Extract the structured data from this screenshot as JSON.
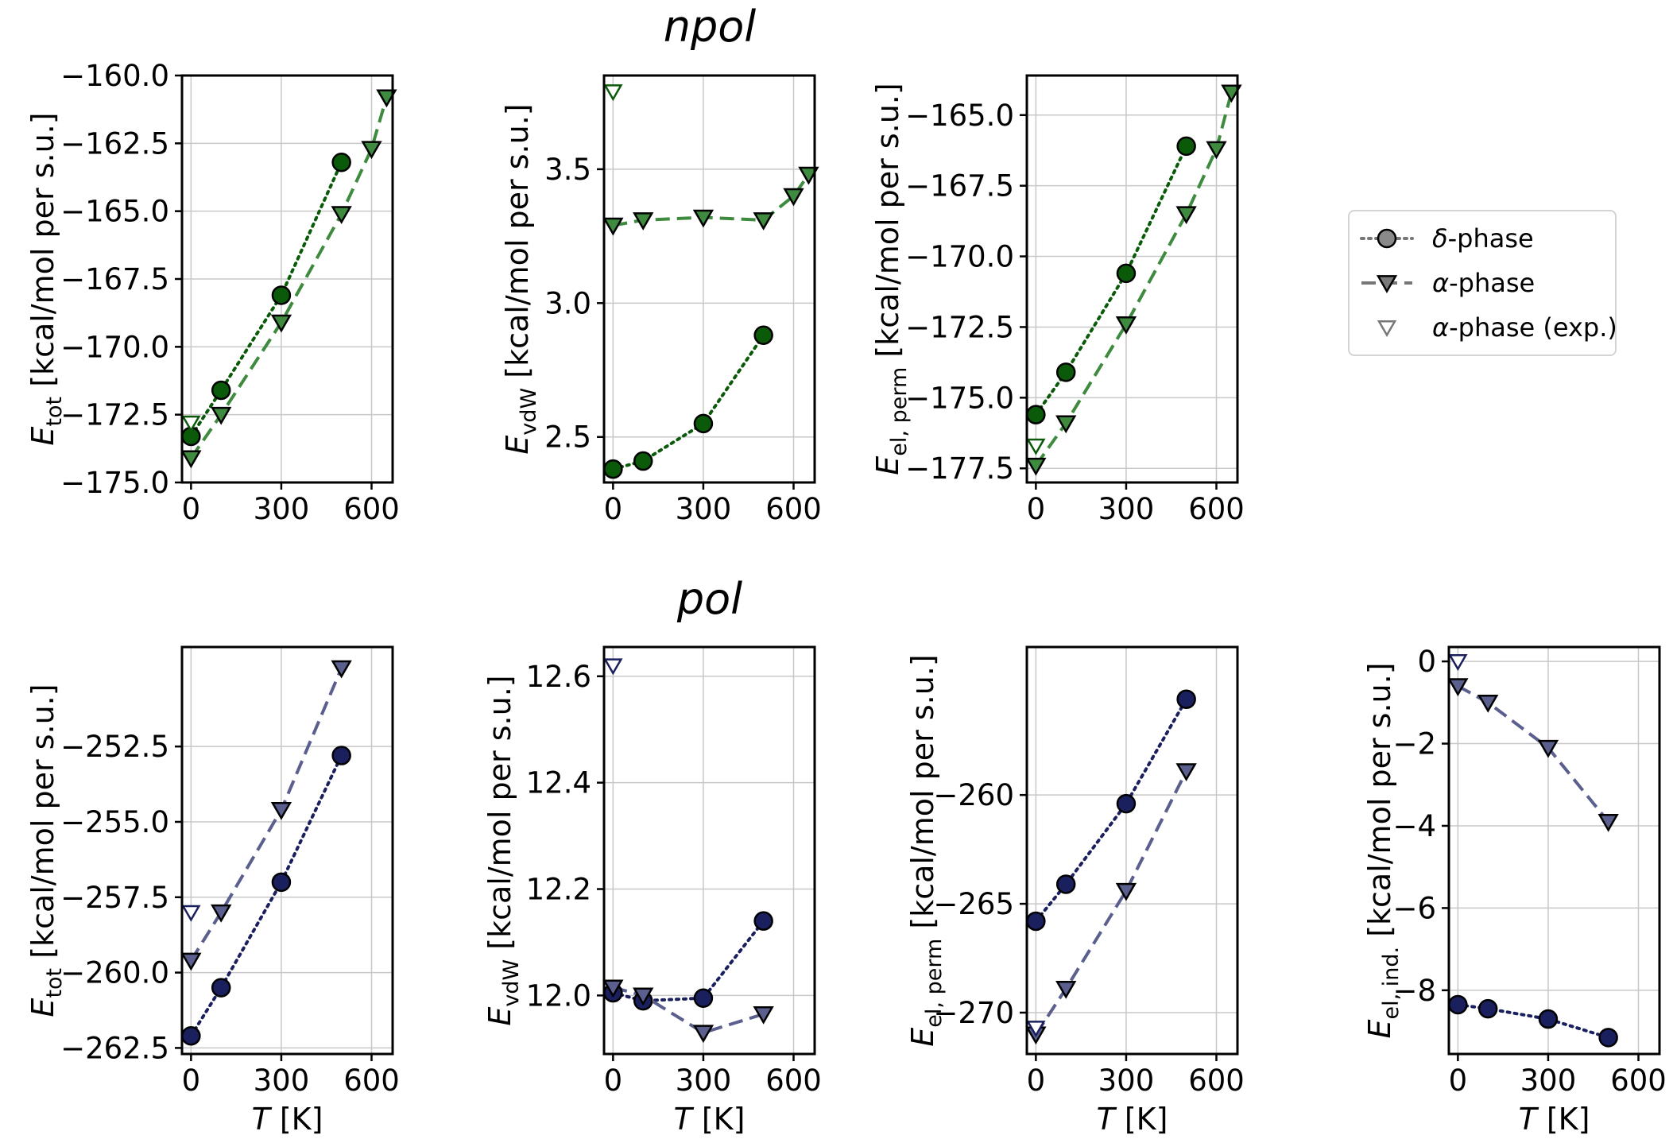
{
  "colors": {
    "npol_marker": "#0a5a0a",
    "npol_alpha": "#3e8a3e",
    "pol_marker": "#1a1f5e",
    "pol_alpha": "#5a5f8e",
    "grid": "#c8c8c8"
  },
  "titles": {
    "npol": "npol",
    "pol": "pol"
  },
  "legend": {
    "placement": "right-middle",
    "entries": [
      {
        "key": "delta",
        "greek": "δ",
        "suffix": "-phase"
      },
      {
        "key": "alpha",
        "greek": "α",
        "suffix": "-phase"
      },
      {
        "key": "exp",
        "greek": "α",
        "suffix": "-phase (exp.)"
      }
    ]
  },
  "xlabel": {
    "italic": "T",
    "unit": " [K]"
  },
  "chart_data": [
    {
      "type": "line",
      "row": "npol",
      "ylabel": {
        "sym": "E",
        "sub": "tot",
        "rest": " [kcal/mol per s.u.]"
      },
      "xlim": [
        -30,
        670
      ],
      "ylim": [
        -175.0,
        -160.0
      ],
      "xticks": [
        "0",
        "300",
        "600"
      ],
      "xtick_vals": [
        0,
        300,
        600
      ],
      "yticks": [
        "−175.0",
        "−172.5",
        "−170.0",
        "−167.5",
        "−165.0",
        "−162.5",
        "−160.0"
      ],
      "ytick_vals": [
        -175.0,
        -172.5,
        -170.0,
        -167.5,
        -165.0,
        -162.5,
        -160.0
      ],
      "show_xlabel": false,
      "series": [
        {
          "name": "δ-phase",
          "style": "delta",
          "x": [
            0,
            100,
            300,
            500
          ],
          "y": [
            -173.3,
            -171.6,
            -168.1,
            -163.2
          ]
        },
        {
          "name": "α-phase",
          "style": "alpha",
          "x": [
            0,
            100,
            300,
            500,
            600,
            650
          ],
          "y": [
            -174.1,
            -172.5,
            -169.1,
            -165.1,
            -162.7,
            -160.8
          ]
        },
        {
          "name": "α-phase (exp.)",
          "style": "exp",
          "x": [
            0
          ],
          "y": [
            -172.8
          ]
        }
      ]
    },
    {
      "type": "line",
      "row": "npol",
      "ylabel": {
        "sym": "E",
        "sub": "vdW",
        "rest": " [kcal/mol per s.u.]"
      },
      "xlim": [
        -30,
        670
      ],
      "ylim": [
        2.33,
        3.85
      ],
      "xticks": [
        "0",
        "300",
        "600"
      ],
      "xtick_vals": [
        0,
        300,
        600
      ],
      "yticks": [
        "2.5",
        "3.0",
        "3.5"
      ],
      "ytick_vals": [
        2.5,
        3.0,
        3.5
      ],
      "show_xlabel": false,
      "series": [
        {
          "name": "δ-phase",
          "style": "delta",
          "x": [
            0,
            100,
            300,
            500
          ],
          "y": [
            2.38,
            2.41,
            2.55,
            2.88
          ]
        },
        {
          "name": "α-phase",
          "style": "alpha",
          "x": [
            0,
            100,
            300,
            500,
            600,
            650
          ],
          "y": [
            3.29,
            3.31,
            3.32,
            3.31,
            3.4,
            3.48
          ]
        },
        {
          "name": "α-phase (exp.)",
          "style": "exp",
          "x": [
            0
          ],
          "y": [
            3.79
          ]
        }
      ]
    },
    {
      "type": "line",
      "row": "npol",
      "ylabel": {
        "sym": "E",
        "sub": "el, perm",
        "rest": " [kcal/mol per s.u.]"
      },
      "xlim": [
        -30,
        670
      ],
      "ylim": [
        -178.0,
        -163.6
      ],
      "xticks": [
        "0",
        "300",
        "600"
      ],
      "xtick_vals": [
        0,
        300,
        600
      ],
      "yticks": [
        "−177.5",
        "−175.0",
        "−172.5",
        "−170.0",
        "−167.5",
        "−165.0"
      ],
      "ytick_vals": [
        -177.5,
        -175.0,
        -172.5,
        -170.0,
        -167.5,
        -165.0
      ],
      "show_xlabel": false,
      "series": [
        {
          "name": "δ-phase",
          "style": "delta",
          "x": [
            0,
            100,
            300,
            500
          ],
          "y": [
            -175.6,
            -174.1,
            -170.6,
            -166.1
          ]
        },
        {
          "name": "α-phase",
          "style": "alpha",
          "x": [
            0,
            100,
            300,
            500,
            600,
            650
          ],
          "y": [
            -177.4,
            -175.9,
            -172.4,
            -168.5,
            -166.2,
            -164.2
          ]
        },
        {
          "name": "α-phase (exp.)",
          "style": "exp",
          "x": [
            0
          ],
          "y": [
            -176.7
          ]
        }
      ]
    },
    {
      "type": "line",
      "row": "pol",
      "ylabel": {
        "sym": "E",
        "sub": "tot",
        "rest": " [kcal/mol per s.u.]"
      },
      "xlim": [
        -30,
        670
      ],
      "ylim": [
        -262.7,
        -249.2
      ],
      "xticks": [
        "0",
        "300",
        "600"
      ],
      "xtick_vals": [
        0,
        300,
        600
      ],
      "yticks": [
        "−262.5",
        "−260.0",
        "−257.5",
        "−255.0",
        "−252.5"
      ],
      "ytick_vals": [
        -262.5,
        -260.0,
        -257.5,
        -255.0,
        -252.5
      ],
      "show_xlabel": true,
      "series": [
        {
          "name": "δ-phase",
          "style": "delta",
          "x": [
            0,
            100,
            300,
            500
          ],
          "y": [
            -262.1,
            -260.5,
            -257.0,
            -252.8
          ]
        },
        {
          "name": "α-phase",
          "style": "alpha",
          "x": [
            0,
            100,
            300,
            500
          ],
          "y": [
            -259.6,
            -258.0,
            -254.6,
            -249.9
          ]
        },
        {
          "name": "α-phase (exp.)",
          "style": "exp",
          "x": [
            0
          ],
          "y": [
            -258.0
          ]
        }
      ]
    },
    {
      "type": "line",
      "row": "pol",
      "ylabel": {
        "sym": "E",
        "sub": "vdW",
        "rest": " [kcal/mol per s.u.]"
      },
      "xlim": [
        -30,
        670
      ],
      "ylim": [
        11.89,
        12.655
      ],
      "xticks": [
        "0",
        "300",
        "600"
      ],
      "xtick_vals": [
        0,
        300,
        600
      ],
      "yticks": [
        "12.0",
        "12.2",
        "12.4",
        "12.6"
      ],
      "ytick_vals": [
        12.0,
        12.2,
        12.4,
        12.6
      ],
      "show_xlabel": true,
      "series": [
        {
          "name": "δ-phase",
          "style": "delta",
          "x": [
            0,
            100,
            300,
            500
          ],
          "y": [
            12.005,
            11.99,
            11.995,
            12.14
          ]
        },
        {
          "name": "α-phase",
          "style": "alpha",
          "x": [
            0,
            100,
            300,
            500
          ],
          "y": [
            12.015,
            12.0,
            11.93,
            11.965
          ]
        },
        {
          "name": "α-phase (exp.)",
          "style": "exp",
          "x": [
            0
          ],
          "y": [
            12.62
          ]
        }
      ]
    },
    {
      "type": "line",
      "row": "pol",
      "ylabel": {
        "sym": "E",
        "sub": "el, perm",
        "rest": " [kcal/mol per s.u.]"
      },
      "xlim": [
        -30,
        670
      ],
      "ylim": [
        -271.9,
        -253.2
      ],
      "xticks": [
        "0",
        "300",
        "600"
      ],
      "xtick_vals": [
        0,
        300,
        600
      ],
      "yticks": [
        "−270",
        "−265",
        "−260"
      ],
      "ytick_vals": [
        -270,
        -265,
        -260
      ],
      "show_xlabel": true,
      "series": [
        {
          "name": "δ-phase",
          "style": "delta",
          "x": [
            0,
            100,
            300,
            500
          ],
          "y": [
            -265.8,
            -264.1,
            -260.4,
            -255.6
          ]
        },
        {
          "name": "α-phase",
          "style": "alpha",
          "x": [
            0,
            100,
            300,
            500
          ],
          "y": [
            -271.0,
            -268.9,
            -264.4,
            -258.9
          ]
        },
        {
          "name": "α-phase (exp.)",
          "style": "exp",
          "x": [
            0
          ],
          "y": [
            -270.7
          ]
        }
      ]
    },
    {
      "type": "line",
      "row": "pol",
      "ylabel": {
        "sym": "E",
        "sub": "el, ind.",
        "rest": " [kcal/mol per s.u.]"
      },
      "xlim": [
        -30,
        670
      ],
      "ylim": [
        -9.55,
        0.35
      ],
      "xticks": [
        "0",
        "300",
        "600"
      ],
      "xtick_vals": [
        0,
        300,
        600
      ],
      "yticks": [
        "−8",
        "−6",
        "−4",
        "−2",
        "0"
      ],
      "ytick_vals": [
        -8,
        -6,
        -4,
        -2,
        0
      ],
      "show_xlabel": true,
      "series": [
        {
          "name": "δ-phase",
          "style": "delta",
          "x": [
            0,
            100,
            300,
            500
          ],
          "y": [
            -8.35,
            -8.45,
            -8.7,
            -9.15
          ]
        },
        {
          "name": "α-phase",
          "style": "alpha",
          "x": [
            0,
            100,
            300,
            500
          ],
          "y": [
            -0.6,
            -1.0,
            -2.1,
            -3.9
          ]
        },
        {
          "name": "α-phase (exp.)",
          "style": "exp",
          "x": [
            0
          ],
          "y": [
            0.0
          ]
        }
      ]
    }
  ]
}
